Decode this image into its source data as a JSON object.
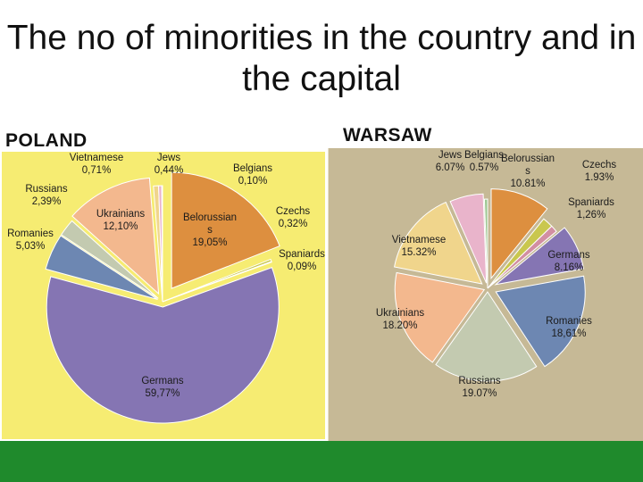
{
  "title": "The no of minorities in the country and in the capital",
  "chart_data": [
    {
      "type": "pie",
      "title": "POLAND",
      "slices": [
        {
          "label": "Belorussians",
          "text": [
            "Belorussian",
            "s",
            "19,05%"
          ],
          "value": 19.05,
          "color": "#dd8f3f"
        },
        {
          "label": "Czechs",
          "text": [
            "Czechs",
            "0,32%"
          ],
          "value": 0.32,
          "color": "#c9c74e"
        },
        {
          "label": "Spaniards",
          "text": [
            "Spaniards",
            "0,09%"
          ],
          "value": 0.09,
          "color": "#d28fa2"
        },
        {
          "label": "Germans",
          "text": [
            "Germans",
            "59,77%"
          ],
          "value": 59.77,
          "color": "#8575b3"
        },
        {
          "label": "Romanies",
          "text": [
            "Romanies",
            "5,03%"
          ],
          "value": 5.03,
          "color": "#6d87b2"
        },
        {
          "label": "Russians",
          "text": [
            "Russians",
            "2,39%"
          ],
          "value": 2.39,
          "color": "#c3cab0"
        },
        {
          "label": "Ukrainians",
          "text": [
            "Ukrainians",
            "12,10%"
          ],
          "value": 12.1,
          "color": "#f3b88e"
        },
        {
          "label": "Vietnamese",
          "text": [
            "Vietnamese",
            "0,71%"
          ],
          "value": 0.71,
          "color": "#f0d58c"
        },
        {
          "label": "Jews",
          "text": [
            "Jews",
            "0,44%"
          ],
          "value": 0.44,
          "color": "#e9b4cb"
        },
        {
          "label": "Belgians",
          "text": [
            "Belgians",
            "0,10%"
          ],
          "value": 0.1,
          "color": "#9cc792"
        }
      ]
    },
    {
      "type": "pie",
      "title": "WARSAW",
      "slices": [
        {
          "label": "Belorussians",
          "text": [
            "Belorussian",
            "s",
            "10.81%"
          ],
          "value": 10.81,
          "color": "#dd8f3f"
        },
        {
          "label": "Czechs",
          "text": [
            "Czechs",
            "1.93%"
          ],
          "value": 1.93,
          "color": "#c9c74e"
        },
        {
          "label": "Spaniards",
          "text": [
            "Spaniards",
            "1,26%"
          ],
          "value": 1.26,
          "color": "#d28fa2"
        },
        {
          "label": "Germans",
          "text": [
            "Germans",
            "8.16%"
          ],
          "value": 8.16,
          "color": "#8575b3"
        },
        {
          "label": "Romanies",
          "text": [
            "Romanies",
            "18,61%"
          ],
          "value": 18.61,
          "color": "#6d87b2"
        },
        {
          "label": "Russians",
          "text": [
            "Russians",
            "19.07%"
          ],
          "value": 19.07,
          "color": "#c3cab0"
        },
        {
          "label": "Ukrainians",
          "text": [
            "Ukrainians",
            "18.20%"
          ],
          "value": 18.2,
          "color": "#f3b88e"
        },
        {
          "label": "Vietnamese",
          "text": [
            "Vietnamese",
            "15.32%"
          ],
          "value": 15.32,
          "color": "#f0d58c"
        },
        {
          "label": "Jews",
          "text": [
            "Jews",
            "6.07%"
          ],
          "value": 6.07,
          "color": "#e9b4cb"
        },
        {
          "label": "Belgians",
          "text": [
            "Belgians",
            "0.57%"
          ],
          "value": 0.57,
          "color": "#9cc792"
        }
      ]
    }
  ]
}
